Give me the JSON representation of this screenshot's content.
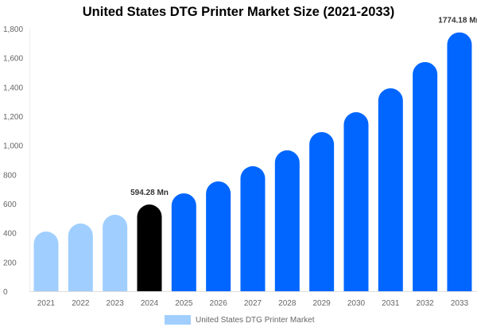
{
  "chart_data": {
    "type": "bar",
    "title": "United States DTG Printer Market Size (2021-2033)",
    "categories": [
      "2021",
      "2022",
      "2023",
      "2024",
      "2025",
      "2026",
      "2027",
      "2028",
      "2029",
      "2030",
      "2031",
      "2032",
      "2033"
    ],
    "series": [
      {
        "name": "United States DTG Printer Market",
        "values": [
          409,
          464,
          524,
          594.28,
          671,
          753,
          857,
          966,
          1091,
          1227,
          1391,
          1571,
          1774.18
        ]
      }
    ],
    "bar_colors": [
      "#a0cfff",
      "#a0cfff",
      "#a0cfff",
      "#000000",
      "#0066ff",
      "#0066ff",
      "#0066ff",
      "#0066ff",
      "#0066ff",
      "#0066ff",
      "#0066ff",
      "#0066ff",
      "#0066ff"
    ],
    "data_labels": {
      "3": "594.28 Mn",
      "12": "1774.18 Mn"
    },
    "yticks": [
      "0",
      "200",
      "400",
      "600",
      "800",
      "1,000",
      "1,200",
      "1,400",
      "1,600",
      "1,800"
    ],
    "ylim": [
      0,
      1800
    ],
    "xlabel": "",
    "ylabel": "",
    "grid": false,
    "legend": "bottom",
    "legend_color": "#a0cfff"
  }
}
